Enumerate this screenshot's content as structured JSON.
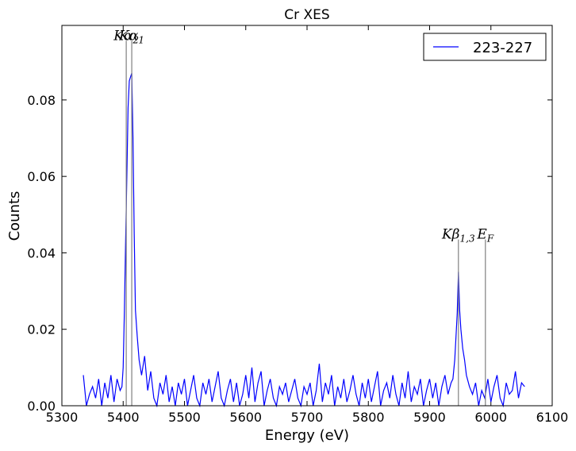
{
  "chart_data": {
    "type": "line",
    "title": "Cr XES",
    "xlabel": "Energy (eV)",
    "ylabel": "Counts",
    "x": [
      5335,
      5340,
      5345,
      5350,
      5355,
      5360,
      5365,
      5370,
      5375,
      5380,
      5385,
      5390,
      5395,
      5398,
      5400,
      5402,
      5404,
      5406,
      5408,
      5410,
      5412,
      5414,
      5416,
      5418,
      5420,
      5423,
      5426,
      5430,
      5435,
      5440,
      5445,
      5450,
      5455,
      5460,
      5465,
      5470,
      5475,
      5480,
      5485,
      5490,
      5495,
      5500,
      5505,
      5510,
      5515,
      5520,
      5525,
      5530,
      5535,
      5540,
      5545,
      5550,
      5555,
      5560,
      5565,
      5570,
      5575,
      5580,
      5585,
      5590,
      5595,
      5600,
      5605,
      5610,
      5615,
      5620,
      5625,
      5630,
      5635,
      5640,
      5645,
      5650,
      5655,
      5660,
      5665,
      5670,
      5675,
      5680,
      5685,
      5690,
      5695,
      5700,
      5705,
      5710,
      5715,
      5720,
      5725,
      5730,
      5735,
      5740,
      5745,
      5750,
      5755,
      5760,
      5765,
      5770,
      5775,
      5780,
      5785,
      5790,
      5795,
      5800,
      5805,
      5810,
      5815,
      5820,
      5825,
      5830,
      5835,
      5840,
      5845,
      5850,
      5855,
      5860,
      5865,
      5870,
      5875,
      5880,
      5885,
      5890,
      5895,
      5900,
      5905,
      5910,
      5915,
      5920,
      5925,
      5930,
      5935,
      5938,
      5941,
      5943,
      5945,
      5947,
      5949,
      5951,
      5954,
      5957,
      5960,
      5965,
      5970,
      5975,
      5980,
      5985,
      5990,
      5995,
      6000,
      6005,
      6010,
      6015,
      6020,
      6025,
      6030,
      6035,
      6040,
      6045,
      6050,
      6055
    ],
    "series": [
      {
        "name": "223-227",
        "color": "#0000ff",
        "values": [
          0.008,
          0.0,
          0.003,
          0.005,
          0.002,
          0.007,
          0.0,
          0.006,
          0.002,
          0.008,
          0.001,
          0.007,
          0.004,
          0.005,
          0.01,
          0.025,
          0.043,
          0.06,
          0.078,
          0.085,
          0.086,
          0.087,
          0.07,
          0.045,
          0.025,
          0.018,
          0.012,
          0.008,
          0.013,
          0.004,
          0.009,
          0.002,
          0.0,
          0.006,
          0.003,
          0.008,
          0.001,
          0.005,
          0.0,
          0.006,
          0.003,
          0.007,
          0.0,
          0.004,
          0.008,
          0.002,
          0.0,
          0.006,
          0.003,
          0.007,
          0.001,
          0.005,
          0.009,
          0.002,
          0.0,
          0.004,
          0.007,
          0.001,
          0.006,
          0.0,
          0.003,
          0.008,
          0.002,
          0.01,
          0.001,
          0.006,
          0.009,
          0.0,
          0.004,
          0.007,
          0.002,
          0.0,
          0.005,
          0.003,
          0.006,
          0.001,
          0.004,
          0.007,
          0.002,
          0.0,
          0.005,
          0.003,
          0.006,
          0.0,
          0.004,
          0.011,
          0.001,
          0.006,
          0.003,
          0.008,
          0.0,
          0.005,
          0.002,
          0.007,
          0.001,
          0.004,
          0.008,
          0.003,
          0.0,
          0.006,
          0.002,
          0.007,
          0.001,
          0.005,
          0.009,
          0.0,
          0.004,
          0.006,
          0.002,
          0.008,
          0.003,
          0.0,
          0.006,
          0.002,
          0.009,
          0.001,
          0.005,
          0.003,
          0.007,
          0.0,
          0.004,
          0.007,
          0.002,
          0.006,
          0.0,
          0.005,
          0.008,
          0.003,
          0.006,
          0.007,
          0.012,
          0.018,
          0.024,
          0.035,
          0.025,
          0.02,
          0.015,
          0.012,
          0.008,
          0.005,
          0.003,
          0.006,
          0.0,
          0.004,
          0.002,
          0.007,
          0.001,
          0.005,
          0.008,
          0.002,
          0.0,
          0.006,
          0.003,
          0.004,
          0.009,
          0.002,
          0.006,
          0.005
        ]
      }
    ],
    "xlim": [
      5300,
      6100
    ],
    "xticks": [
      5300,
      5400,
      5500,
      5600,
      5700,
      5800,
      5900,
      6000,
      6100
    ],
    "ylim": [
      0,
      0.0995
    ],
    "yticks": [
      {
        "value": 0,
        "label": "0.00"
      },
      {
        "value": 0.02,
        "label": "0.02"
      },
      {
        "value": 0.04,
        "label": "0.04"
      },
      {
        "value": 0.06,
        "label": "0.06"
      },
      {
        "value": 0.08,
        "label": "0.08"
      }
    ],
    "legend": "upper right",
    "annotations": [
      {
        "text": "Kα",
        "subscript": "2",
        "x": 5405,
        "y": 0.0955,
        "color": "#808080"
      },
      {
        "text": "Kα",
        "subscript": "1",
        "x": 5414,
        "y": 0.0955,
        "color": "#808080"
      },
      {
        "text": "Kβ",
        "subscript": "1,3",
        "x": 5947,
        "y": 0.0435,
        "color": "#808080"
      },
      {
        "text": "E",
        "subscript": "F",
        "x": 5991,
        "y": 0.0435,
        "color": "#808080"
      }
    ]
  }
}
